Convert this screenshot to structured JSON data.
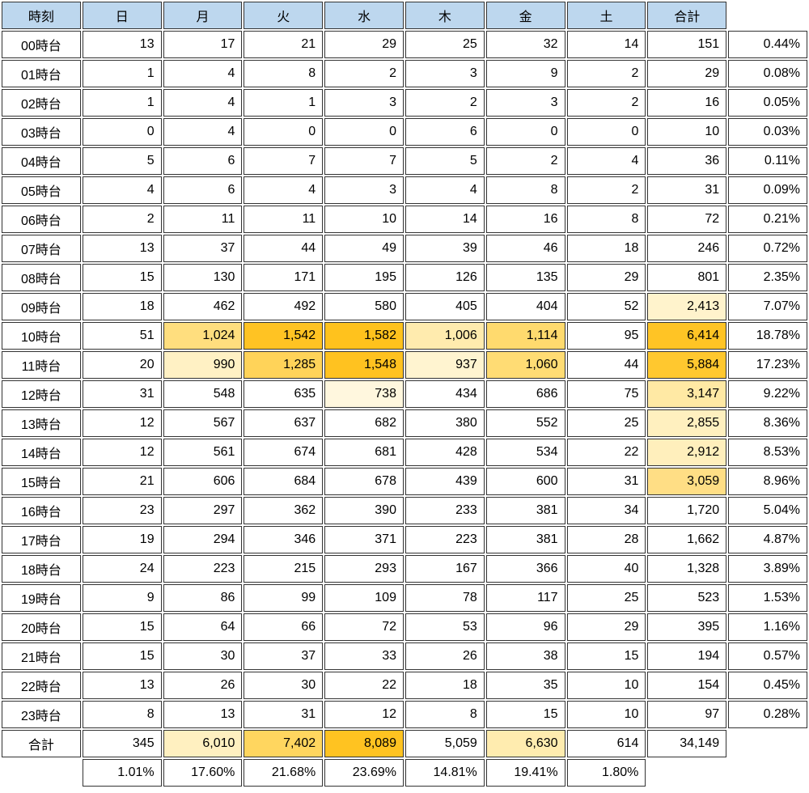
{
  "app": {
    "name": "hourly-weekday-summary-spreadsheet"
  },
  "colors": {
    "header_bg": "#BDD7EE",
    "border": "#333333",
    "text": "#000000",
    "heat_dark": "#FFC21D",
    "heat_medium": "#FFD965",
    "heat_light": "#FFF2CC"
  },
  "grid": {
    "header": [
      "時刻",
      "日",
      "月",
      "火",
      "水",
      "木",
      "金",
      "土",
      "合計",
      ""
    ],
    "rows": [
      [
        "00時台",
        "13",
        "17",
        "21",
        "29",
        "25",
        "32",
        "14",
        "151",
        "0.44%"
      ],
      [
        "01時台",
        "1",
        "4",
        "8",
        "2",
        "3",
        "9",
        "2",
        "29",
        "0.08%"
      ],
      [
        "02時台",
        "1",
        "4",
        "1",
        "3",
        "2",
        "3",
        "2",
        "16",
        "0.05%"
      ],
      [
        "03時台",
        "0",
        "4",
        "0",
        "0",
        "6",
        "0",
        "0",
        "10",
        "0.03%"
      ],
      [
        "04時台",
        "5",
        "6",
        "7",
        "7",
        "5",
        "2",
        "4",
        "36",
        "0.11%"
      ],
      [
        "05時台",
        "4",
        "6",
        "4",
        "3",
        "4",
        "8",
        "2",
        "31",
        "0.09%"
      ],
      [
        "06時台",
        "2",
        "11",
        "11",
        "10",
        "14",
        "16",
        "8",
        "72",
        "0.21%"
      ],
      [
        "07時台",
        "13",
        "37",
        "44",
        "49",
        "39",
        "46",
        "18",
        "246",
        "0.72%"
      ],
      [
        "08時台",
        "15",
        "130",
        "171",
        "195",
        "126",
        "135",
        "29",
        "801",
        "2.35%"
      ],
      [
        "09時台",
        "18",
        "462",
        "492",
        "580",
        "405",
        "404",
        "52",
        "2,413",
        "7.07%"
      ],
      [
        "10時台",
        "51",
        "1,024",
        "1,542",
        "1,582",
        "1,006",
        "1,114",
        "95",
        "6,414",
        "18.78%"
      ],
      [
        "11時台",
        "20",
        "990",
        "1,285",
        "1,548",
        "937",
        "1,060",
        "44",
        "5,884",
        "17.23%"
      ],
      [
        "12時台",
        "31",
        "548",
        "635",
        "738",
        "434",
        "686",
        "75",
        "3,147",
        "9.22%"
      ],
      [
        "13時台",
        "12",
        "567",
        "637",
        "682",
        "380",
        "552",
        "25",
        "2,855",
        "8.36%"
      ],
      [
        "14時台",
        "12",
        "561",
        "674",
        "681",
        "428",
        "534",
        "22",
        "2,912",
        "8.53%"
      ],
      [
        "15時台",
        "21",
        "606",
        "684",
        "678",
        "439",
        "600",
        "31",
        "3,059",
        "8.96%"
      ],
      [
        "16時台",
        "23",
        "297",
        "362",
        "390",
        "233",
        "381",
        "34",
        "1,720",
        "5.04%"
      ],
      [
        "17時台",
        "19",
        "294",
        "346",
        "371",
        "223",
        "381",
        "28",
        "1,662",
        "4.87%"
      ],
      [
        "18時台",
        "24",
        "223",
        "215",
        "293",
        "167",
        "366",
        "40",
        "1,328",
        "3.89%"
      ],
      [
        "19時台",
        "9",
        "86",
        "99",
        "109",
        "78",
        "117",
        "25",
        "523",
        "1.53%"
      ],
      [
        "20時台",
        "15",
        "64",
        "66",
        "72",
        "53",
        "96",
        "29",
        "395",
        "1.16%"
      ],
      [
        "21時台",
        "15",
        "30",
        "37",
        "33",
        "26",
        "38",
        "15",
        "194",
        "0.57%"
      ],
      [
        "22時台",
        "13",
        "26",
        "30",
        "22",
        "18",
        "35",
        "10",
        "154",
        "0.45%"
      ],
      [
        "23時台",
        "8",
        "13",
        "31",
        "12",
        "8",
        "15",
        "10",
        "97",
        "0.28%"
      ],
      [
        "合計",
        "345",
        "6,010",
        "7,402",
        "8,089",
        "5,059",
        "6,630",
        "614",
        "34,149",
        ""
      ],
      [
        "",
        "1.01%",
        "17.60%",
        "21.68%",
        "23.69%",
        "14.81%",
        "19.41%",
        "1.80%",
        "",
        ""
      ]
    ]
  },
  "highlights": [
    {
      "r": 9,
      "c": 8,
      "bg": "#FFF3CC"
    },
    {
      "r": 10,
      "c": 2,
      "bg": "#FFDE7E"
    },
    {
      "r": 10,
      "c": 3,
      "bg": "#FFC323"
    },
    {
      "r": 10,
      "c": 4,
      "bg": "#FFC21D"
    },
    {
      "r": 10,
      "c": 5,
      "bg": "#FFEBAE"
    },
    {
      "r": 10,
      "c": 6,
      "bg": "#FFDA6E"
    },
    {
      "r": 10,
      "c": 8,
      "bg": "#FFC425"
    },
    {
      "r": 11,
      "c": 2,
      "bg": "#FFF1C4"
    },
    {
      "r": 11,
      "c": 3,
      "bg": "#FFD359"
    },
    {
      "r": 11,
      "c": 4,
      "bg": "#FFC220"
    },
    {
      "r": 11,
      "c": 5,
      "bg": "#FFF4D0"
    },
    {
      "r": 11,
      "c": 6,
      "bg": "#FFDC74"
    },
    {
      "r": 11,
      "c": 8,
      "bg": "#FFC82F"
    },
    {
      "r": 12,
      "c": 4,
      "bg": "#FFF7DE"
    },
    {
      "r": 12,
      "c": 8,
      "bg": "#FFE9A4"
    },
    {
      "r": 13,
      "c": 8,
      "bg": "#FFF0BF"
    },
    {
      "r": 14,
      "c": 8,
      "bg": "#FFEFBC"
    },
    {
      "r": 15,
      "c": 8,
      "bg": "#FFDE85"
    },
    {
      "r": 24,
      "c": 2,
      "bg": "#FFF0C0"
    },
    {
      "r": 24,
      "c": 3,
      "bg": "#FFD65F"
    },
    {
      "r": 24,
      "c": 4,
      "bg": "#FFC321"
    },
    {
      "r": 24,
      "c": 6,
      "bg": "#FFECAF"
    }
  ],
  "blank_cells": [
    {
      "r": -1,
      "c": 9
    },
    {
      "r": 24,
      "c": 9
    },
    {
      "r": 25,
      "c": 0
    },
    {
      "r": 25,
      "c": 8
    },
    {
      "r": 25,
      "c": 9
    }
  ]
}
